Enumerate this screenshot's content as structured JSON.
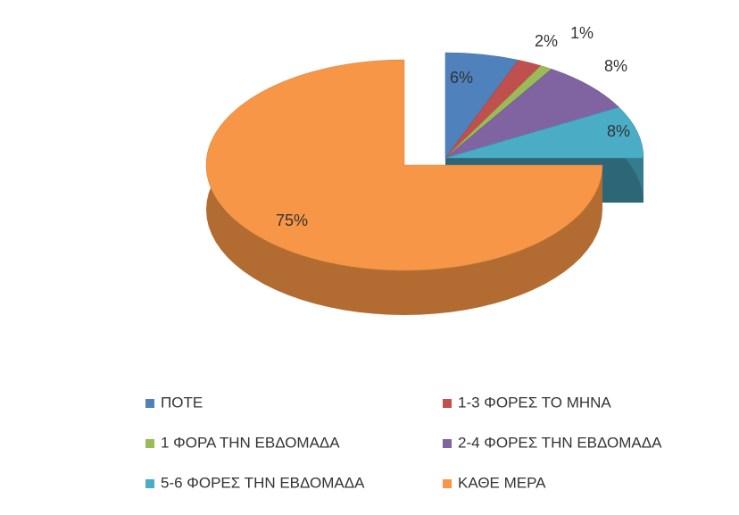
{
  "chart_data": {
    "type": "pie",
    "categories": [
      "ΠΟΤΕ",
      "1-3 ΦΟΡΕΣ ΤΟ ΜΗΝΑ",
      "1 ΦΟΡΑ ΤΗΝ ΕΒΔΟΜΑΔΑ",
      "2-4 ΦΟΡΕΣ ΤΗΝ ΕΒΔΟΜΑΔΑ",
      "5-6 ΦΟΡΕΣ ΤΗΝ ΕΒΔΟΜΑΔΑ",
      "ΚΑΘΕ ΜΕΡΑ"
    ],
    "values": [
      6,
      2,
      1,
      8,
      8,
      75
    ],
    "value_labels": [
      "6%",
      "2%",
      "1%",
      "8%",
      "8%",
      "75%"
    ],
    "colors": [
      "#4f81bd",
      "#c0504d",
      "#9bbb59",
      "#8064a2",
      "#4bacc6",
      "#f79646"
    ],
    "legend": "bottom"
  }
}
